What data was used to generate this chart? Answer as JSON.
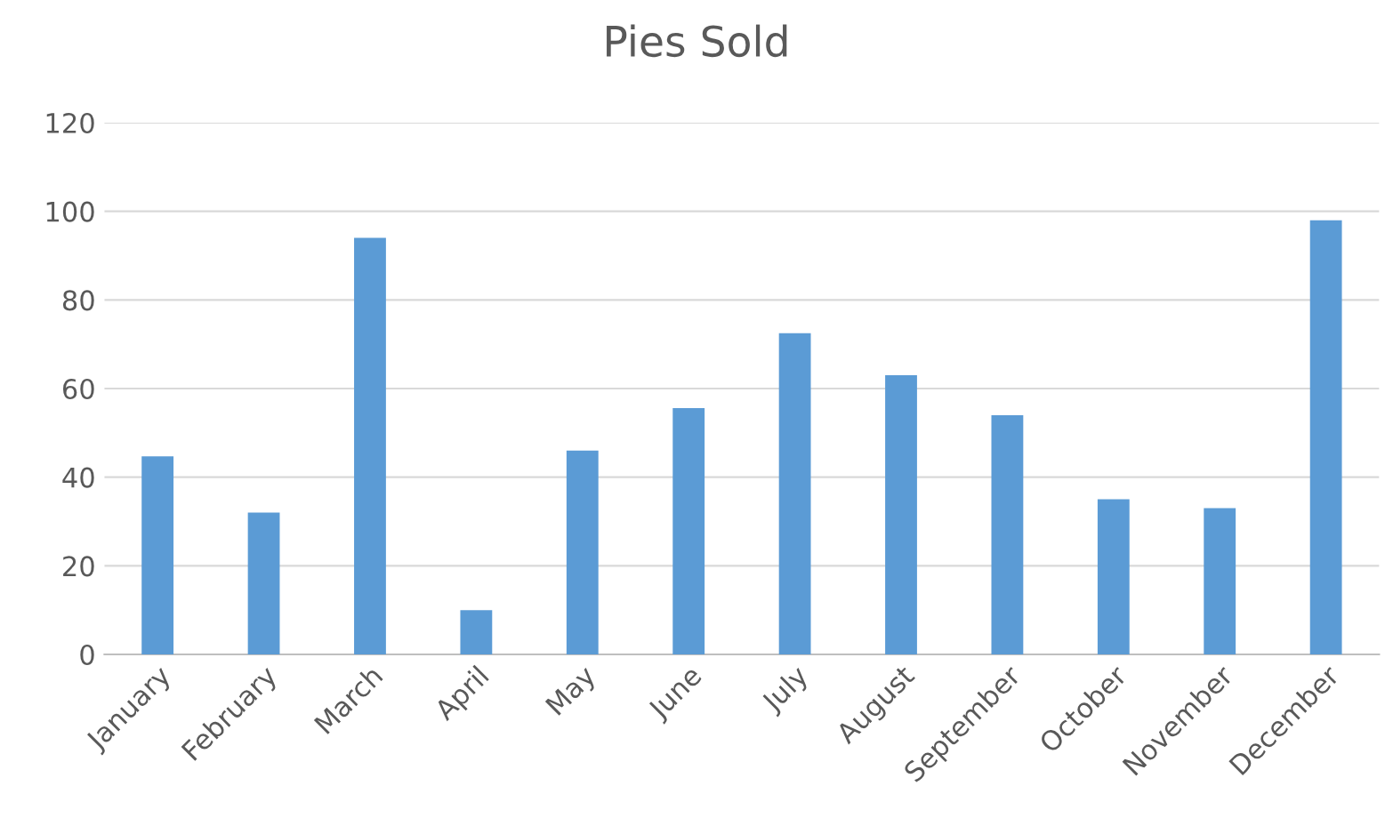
{
  "chart_data": {
    "type": "bar",
    "title": "Pies Sold",
    "categories": [
      "January",
      "February",
      "March",
      "April",
      "May",
      "June",
      "July",
      "August",
      "September",
      "October",
      "November",
      "December"
    ],
    "values": [
      44.7,
      32,
      94,
      10,
      46,
      55.6,
      72.5,
      63,
      54,
      35,
      33,
      98
    ],
    "color": "#5b9bd5",
    "ylim": [
      0,
      120
    ],
    "yticks": [
      0,
      20,
      40,
      60,
      80,
      100,
      120
    ],
    "grid": "y",
    "legend": false
  }
}
